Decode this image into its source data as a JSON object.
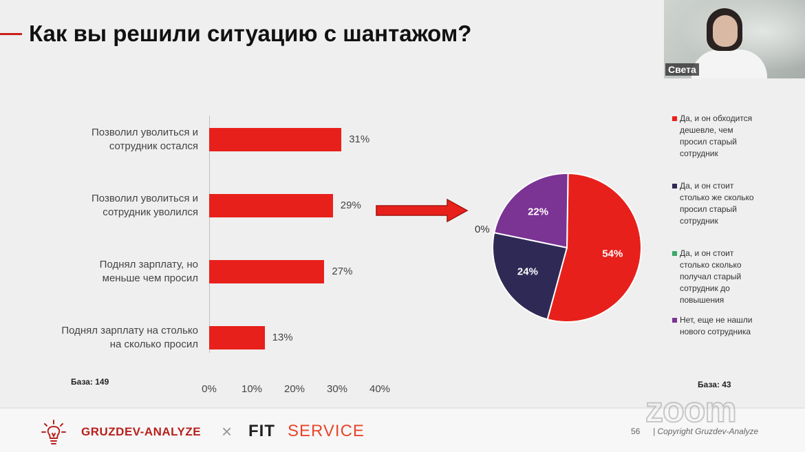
{
  "slide": {
    "title": "Как вы решили ситуацию с шантажом?",
    "webcam_name": "Света"
  },
  "chart_data": [
    {
      "type": "bar",
      "orientation": "horizontal",
      "categories": [
        "Позволил уволиться и сотрудник остался",
        "Позволил уволиться и сотрудник уволился",
        "Поднял зарплату, но меньше чем просил",
        "Поднял зарплату на столько на сколько просил"
      ],
      "category_lines": [
        [
          "Позволил уволиться и",
          "сотрудник остался"
        ],
        [
          "Позволил уволиться и",
          "сотрудник уволился"
        ],
        [
          "Поднял зарплату, но",
          "меньше чем просил"
        ],
        [
          "Поднял зарплату на столько",
          "на сколько просил"
        ]
      ],
      "values": [
        31,
        29,
        27,
        13
      ],
      "value_labels": [
        "31%",
        "29%",
        "27%",
        "13%"
      ],
      "xlim": [
        0,
        40
      ],
      "x_ticks": [
        "0%",
        "10%",
        "20%",
        "30%",
        "40%"
      ],
      "color": "#e8201b",
      "base_label": "База: 149"
    },
    {
      "type": "pie",
      "slices": [
        {
          "label": "Да, и он обходится дешевле, чем просил старый сотрудник",
          "value": 54,
          "value_label": "54%",
          "color": "#e8201b"
        },
        {
          "label": "Да, и он стоит столько же сколько просил старый сотрудник",
          "value": 24,
          "value_label": "24%",
          "color": "#2f2a55"
        },
        {
          "label": "Да, и он стоит столько сколько получал старый сотрудник до повышения",
          "value": 0,
          "value_label": "0%",
          "color": "#3aa86b"
        },
        {
          "label": "Нет, еще не нашли нового сотрудника",
          "value": 22,
          "value_label": "22%",
          "color": "#7b3394"
        }
      ],
      "legend_lines": [
        [
          "Да, и он обходится",
          "дешевле, чем",
          "просил старый",
          "сотрудник"
        ],
        [
          "Да, и он стоит",
          "столько же сколько",
          "просил старый",
          "сотрудник"
        ],
        [
          "Да, и он стоит",
          "столько сколько",
          "получал старый",
          "сотрудник до",
          "повышения"
        ],
        [
          "Нет, еще не нашли",
          "нового сотрудника"
        ]
      ],
      "legend_position": "right",
      "base_label": "База: 43"
    }
  ],
  "footer": {
    "brand": "GRUZDEV-ANALYZE",
    "cross": "×",
    "partner_fit": "FIT",
    "partner_service": "SERVICE",
    "page_number": "56",
    "copyright": "| Copyright Gruzdev-Analyze",
    "watermark": "zoom"
  }
}
